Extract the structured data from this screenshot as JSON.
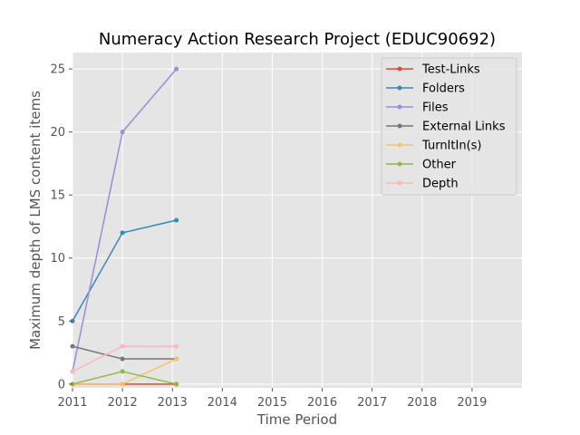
{
  "chart_data": {
    "type": "line",
    "title": "Numeracy Action Research Project (EDUC90692)",
    "xlabel": "Time Period",
    "ylabel": "Maximum depth of LMS content items",
    "xlim": [
      2011,
      2020
    ],
    "ylim": [
      -0.3,
      26.3
    ],
    "xticks": [
      2011,
      2012,
      2013,
      2014,
      2015,
      2016,
      2017,
      2018,
      2019
    ],
    "yticks": [
      0,
      5,
      10,
      15,
      20,
      25
    ],
    "grid": true,
    "legend_position": "top-right",
    "x": [
      2011,
      2012,
      2013.08
    ],
    "series": [
      {
        "name": "Test-Links",
        "color": "#E24A33",
        "values": [
          0,
          0,
          0
        ]
      },
      {
        "name": "Folders",
        "color": "#348ABD",
        "values": [
          5,
          12,
          13
        ]
      },
      {
        "name": "Files",
        "color": "#988ED5",
        "values": [
          1,
          20,
          25
        ]
      },
      {
        "name": "External Links",
        "color": "#777777",
        "values": [
          3,
          2,
          2
        ]
      },
      {
        "name": "TurnItIn(s)",
        "color": "#FBC15E",
        "values": [
          0,
          0,
          2
        ]
      },
      {
        "name": "Other",
        "color": "#8EBA42",
        "values": [
          0,
          1,
          0
        ]
      },
      {
        "name": "Depth",
        "color": "#FFB5B8",
        "values": [
          1,
          3,
          3
        ]
      }
    ]
  }
}
